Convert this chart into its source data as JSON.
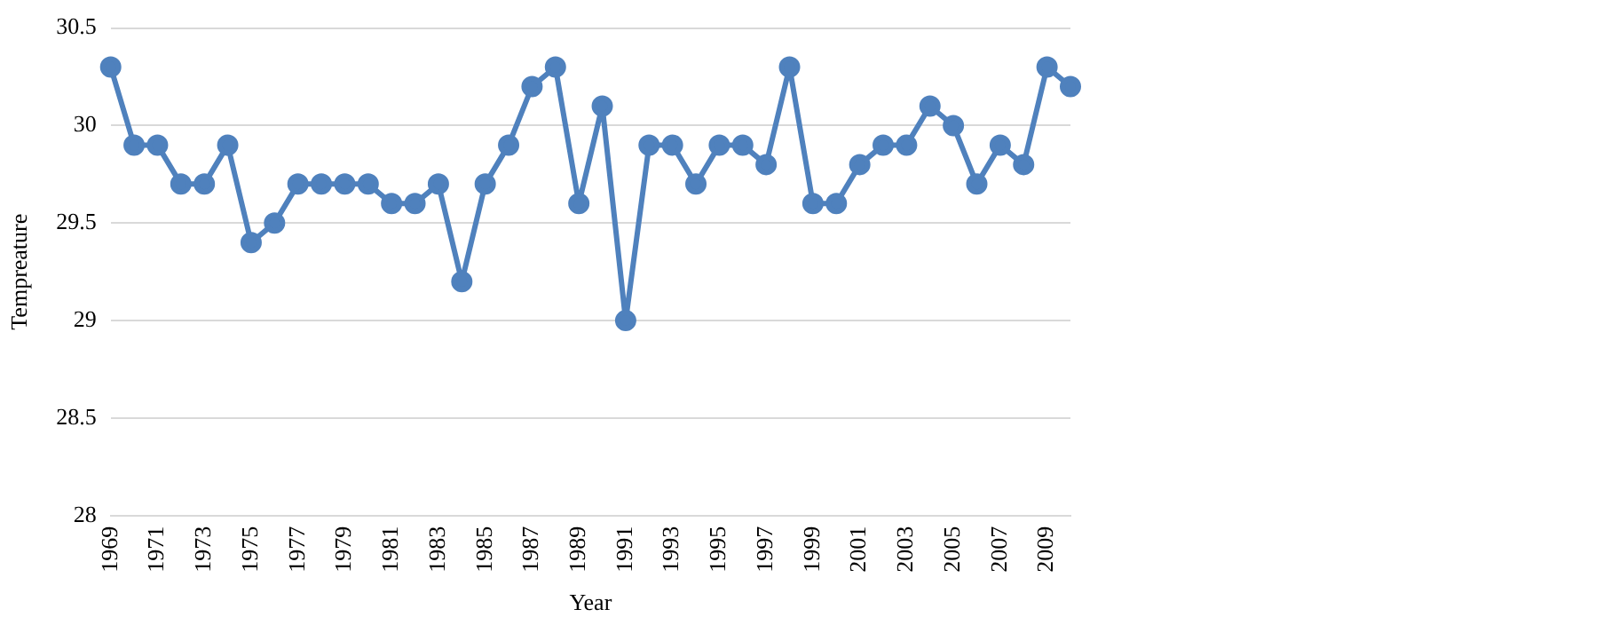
{
  "chart_data": {
    "type": "line",
    "xlabel": "Year",
    "ylabel": "Tempreature",
    "categories": [
      "1969",
      null,
      "1971",
      null,
      "1973",
      null,
      "1975",
      null,
      "1977",
      null,
      "1979",
      null,
      "1981",
      null,
      "1983",
      null,
      "1985",
      null,
      "1987",
      null,
      "1989",
      null,
      "1991",
      null,
      "1993",
      null,
      "1995",
      null,
      "1997",
      null,
      "1999",
      null,
      "2001",
      null,
      "2003",
      null,
      "2005",
      null,
      "2007",
      null,
      "2009",
      null
    ],
    "series": [
      {
        "color": "#4f81bd",
        "values": [
          30.3,
          29.9,
          29.9,
          29.7,
          29.7,
          29.9,
          29.4,
          29.5,
          29.7,
          29.7,
          29.7,
          29.7,
          29.6,
          29.6,
          29.7,
          29.2,
          29.7,
          29.9,
          30.2,
          30.3,
          29.6,
          30.1,
          29.0,
          29.9,
          29.9,
          29.7,
          29.9,
          29.9,
          29.8,
          30.3,
          29.6,
          29.6,
          29.8,
          29.9,
          29.9,
          30.1,
          30.0,
          29.7,
          29.9,
          29.8,
          30.3,
          30.2
        ]
      }
    ],
    "ylim": [
      28,
      30.5
    ],
    "yticks": [
      28,
      28.5,
      29,
      29.5,
      30,
      30.5
    ],
    "grid": "y",
    "marker": "circle",
    "line_style": "solid",
    "legend": false
  }
}
